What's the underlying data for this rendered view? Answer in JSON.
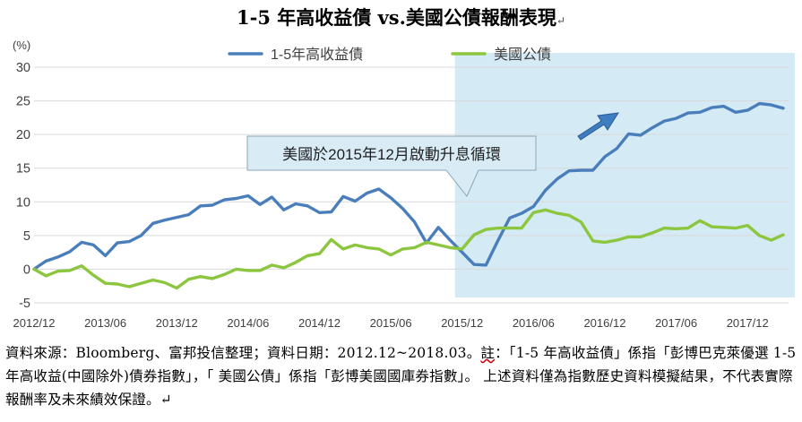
{
  "title": "1-5 年高收益債 vs.美國公債報酬表現",
  "title_mark": "↵",
  "chart_data": {
    "type": "line",
    "ylabel": "(%)",
    "ylim": [
      -5,
      30
    ],
    "yticks": [
      -5,
      0,
      5,
      10,
      15,
      20,
      25,
      30
    ],
    "x_tick_labels": [
      "2012/12",
      "2013/06",
      "2013/12",
      "2014/06",
      "2014/12",
      "2015/06",
      "2015/12",
      "2016/06",
      "2016/12",
      "2017/06",
      "2017/12"
    ],
    "x_tick_positions": [
      0,
      6,
      12,
      18,
      24,
      30,
      36,
      42,
      48,
      54,
      60
    ],
    "x_count": 64,
    "grid": true,
    "legend_position": "top-center",
    "highlight": {
      "from_index": 36,
      "to_index": 64,
      "color": "#cde6f3"
    },
    "annotation": "美國於2015年12月啟動升息循環",
    "trend_arrow": "up-right",
    "series": [
      {
        "name": "1-5年高收益債",
        "color": "#4a7ebb",
        "values": [
          0.0,
          1.2,
          1.8,
          2.6,
          4.0,
          3.6,
          2.0,
          3.9,
          4.1,
          5.0,
          6.8,
          7.3,
          7.7,
          8.1,
          9.4,
          9.5,
          10.3,
          10.5,
          10.9,
          9.6,
          10.7,
          8.8,
          9.7,
          9.4,
          8.4,
          8.5,
          10.8,
          10.1,
          11.3,
          11.9,
          10.6,
          9.0,
          7.0,
          3.9,
          6.2,
          4.3,
          2.5,
          0.7,
          0.6,
          4.2,
          7.6,
          8.3,
          9.3,
          11.7,
          13.4,
          14.6,
          14.7,
          14.7,
          16.7,
          17.9,
          20.1,
          19.9,
          21.0,
          22.0,
          22.4,
          23.2,
          23.3,
          24.0,
          24.2,
          23.3,
          23.6,
          24.6,
          24.4,
          23.9
        ]
      },
      {
        "name": "美國公債",
        "color": "#8cc63f",
        "values": [
          0.0,
          -1.0,
          -0.3,
          -0.2,
          0.5,
          -0.9,
          -2.1,
          -2.2,
          -2.6,
          -2.1,
          -1.6,
          -2.0,
          -2.8,
          -1.5,
          -1.1,
          -1.4,
          -0.8,
          0.0,
          -0.2,
          -0.2,
          0.6,
          0.2,
          1.0,
          2.0,
          2.3,
          4.4,
          3.0,
          3.6,
          3.2,
          3.0,
          2.1,
          3.0,
          3.2,
          4.0,
          3.6,
          3.2,
          3.0,
          5.1,
          5.9,
          6.1,
          6.1,
          6.1,
          8.4,
          8.8,
          8.3,
          8.0,
          7.0,
          4.2,
          4.0,
          4.3,
          4.8,
          4.8,
          5.4,
          6.1,
          6.0,
          6.1,
          7.2,
          6.3,
          6.2,
          6.1,
          6.5,
          5.0,
          4.3,
          5.1
        ]
      }
    ]
  },
  "source_note": {
    "line1_pre": "資料來源：Bloomberg、富邦投信整理；資料日期：2012.12~2018.03。",
    "line1_note": "註",
    "line1_post": "：「1-5 年高收益債」係指「彭博巴克萊優選 1-5 年高收益(中國除外)債券指數」，「 美國公債」係指「彭博美國國庫券指數」。 上述資料僅為指數歷史資料模擬結果，不代表實際報酬率及未來績效保證。",
    "end_mark": "↵"
  }
}
